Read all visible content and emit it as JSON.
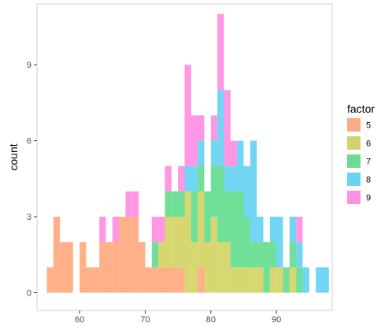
{
  "chart_data": {
    "type": "histogram",
    "title": "",
    "xlabel": "",
    "ylabel": "count",
    "xlim": [
      53.5,
      98.5
    ],
    "ylim": [
      -0.7,
      11.4
    ],
    "x_ticks": [
      60,
      70,
      80,
      90
    ],
    "y_ticks": [
      0,
      3,
      6,
      9
    ],
    "binwidth": 1,
    "stacked": true,
    "fill_alpha": 0.7,
    "grid": false,
    "panel_border": true,
    "legend": {
      "title": "factor",
      "position": "right",
      "entries": [
        "5",
        "6",
        "7",
        "8",
        "9"
      ]
    },
    "bin_starts": [
      55,
      56,
      57,
      58,
      59,
      60,
      61,
      62,
      63,
      64,
      65,
      66,
      67,
      68,
      69,
      70,
      71,
      72,
      73,
      74,
      75,
      76,
      77,
      78,
      79,
      80,
      81,
      82,
      83,
      84,
      85,
      86,
      87,
      88,
      89,
      90,
      91,
      92,
      93,
      94,
      95,
      96,
      97
    ],
    "series": [
      {
        "name": "5",
        "color": "#FF8F55",
        "values": [
          1,
          3,
          2,
          2,
          0,
          2,
          1,
          1,
          2,
          2,
          2,
          3,
          3,
          3,
          2,
          1,
          1,
          1,
          1,
          1,
          1,
          0,
          0,
          1,
          0,
          0,
          0,
          0,
          0,
          0,
          0,
          0,
          0,
          0,
          0,
          0,
          0,
          0,
          0,
          0,
          0,
          0,
          0
        ]
      },
      {
        "name": "6",
        "color": "#C6C634",
        "values": [
          0,
          0,
          0,
          0,
          0,
          0,
          0,
          0,
          0,
          0,
          0,
          0,
          0,
          0,
          0,
          0,
          0,
          1,
          2,
          2,
          2,
          4,
          2,
          3,
          2,
          3,
          2,
          2,
          1,
          1,
          1,
          1,
          1,
          0,
          1,
          1,
          0,
          1,
          0,
          0,
          0,
          0,
          0
        ]
      },
      {
        "name": "7",
        "color": "#33D16B",
        "values": [
          0,
          0,
          0,
          0,
          0,
          0,
          0,
          0,
          0,
          0,
          0,
          0,
          0,
          0,
          0,
          0,
          1,
          0,
          1,
          1,
          1,
          0,
          2,
          1,
          2,
          2,
          3,
          2,
          3,
          3,
          2,
          1,
          1,
          2,
          1,
          0,
          1,
          1,
          1,
          0,
          0,
          0,
          0
        ]
      },
      {
        "name": "8",
        "color": "#33C5F0",
        "values": [
          0,
          0,
          0,
          0,
          0,
          0,
          0,
          0,
          0,
          0,
          0,
          0,
          0,
          0,
          0,
          0,
          0,
          0,
          0,
          0,
          0,
          1,
          1,
          1,
          0,
          1,
          3,
          1,
          1,
          2,
          2,
          4,
          1,
          0,
          1,
          2,
          0,
          1,
          1,
          1,
          0,
          1,
          1
        ]
      },
      {
        "name": "9",
        "color": "#FF6BD8",
        "values": [
          0,
          0,
          0,
          0,
          0,
          0,
          0,
          0,
          1,
          0,
          1,
          0,
          1,
          1,
          0,
          0,
          1,
          1,
          1,
          0,
          1,
          4,
          2,
          1,
          0,
          1,
          3,
          3,
          1,
          0,
          0,
          0,
          0,
          0,
          0,
          0,
          0,
          0,
          1,
          0,
          0,
          0,
          0
        ]
      }
    ]
  }
}
